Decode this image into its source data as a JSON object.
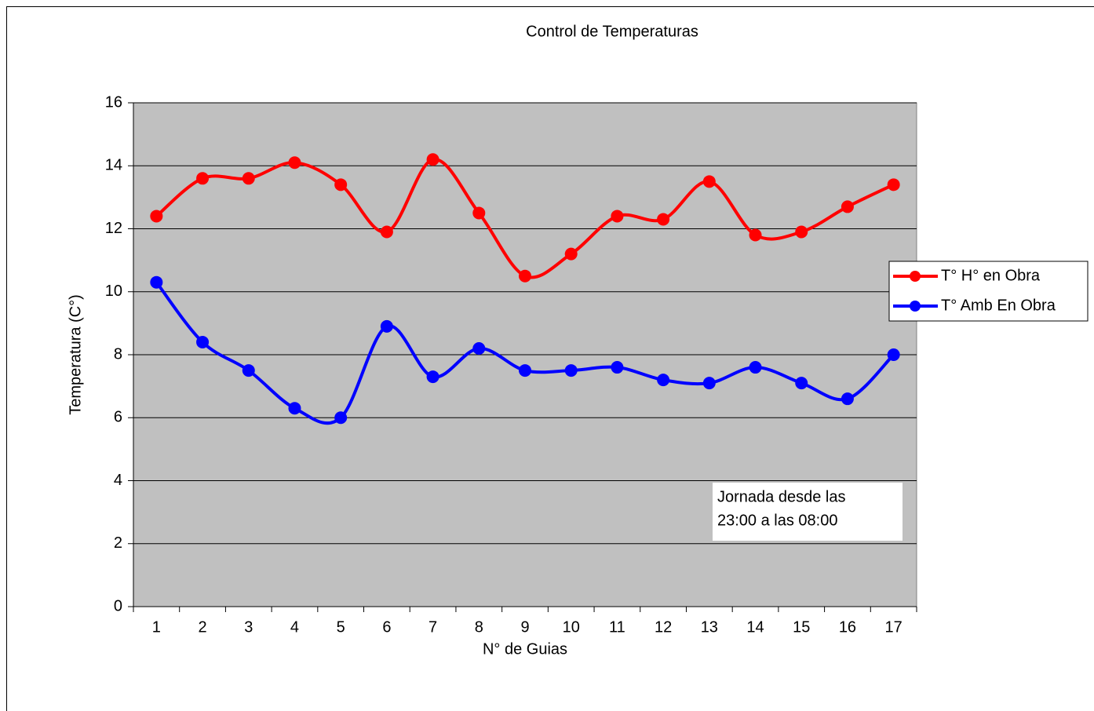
{
  "chart_data": {
    "type": "line",
    "title": "Control de Temperaturas",
    "xlabel": "N° de Guias",
    "ylabel": "Temperatura (C°)",
    "categories": [
      "1",
      "2",
      "3",
      "4",
      "5",
      "6",
      "7",
      "8",
      "9",
      "10",
      "11",
      "12",
      "13",
      "14",
      "15",
      "16",
      "17"
    ],
    "series": [
      {
        "name": "T° H° en Obra",
        "color": "#ff0000",
        "values": [
          12.4,
          13.6,
          13.6,
          14.1,
          13.4,
          11.9,
          14.2,
          12.5,
          10.5,
          11.2,
          12.4,
          12.3,
          13.5,
          11.8,
          11.9,
          12.7,
          13.4
        ]
      },
      {
        "name": "T° Amb En Obra",
        "color": "#0000ff",
        "values": [
          10.3,
          8.4,
          7.5,
          6.3,
          6.0,
          8.9,
          7.3,
          8.2,
          7.5,
          7.5,
          7.6,
          7.2,
          7.1,
          7.6,
          7.1,
          6.6,
          8.0
        ]
      }
    ],
    "ylim": [
      0,
      16
    ],
    "yticks": [
      0,
      2,
      4,
      6,
      8,
      10,
      12,
      14,
      16
    ],
    "grid": true,
    "smooth": true,
    "plot_background": "#c0c0c0",
    "legend": "right",
    "annotation": [
      "Jornada desde las",
      "23:00 a las 08:00"
    ]
  }
}
